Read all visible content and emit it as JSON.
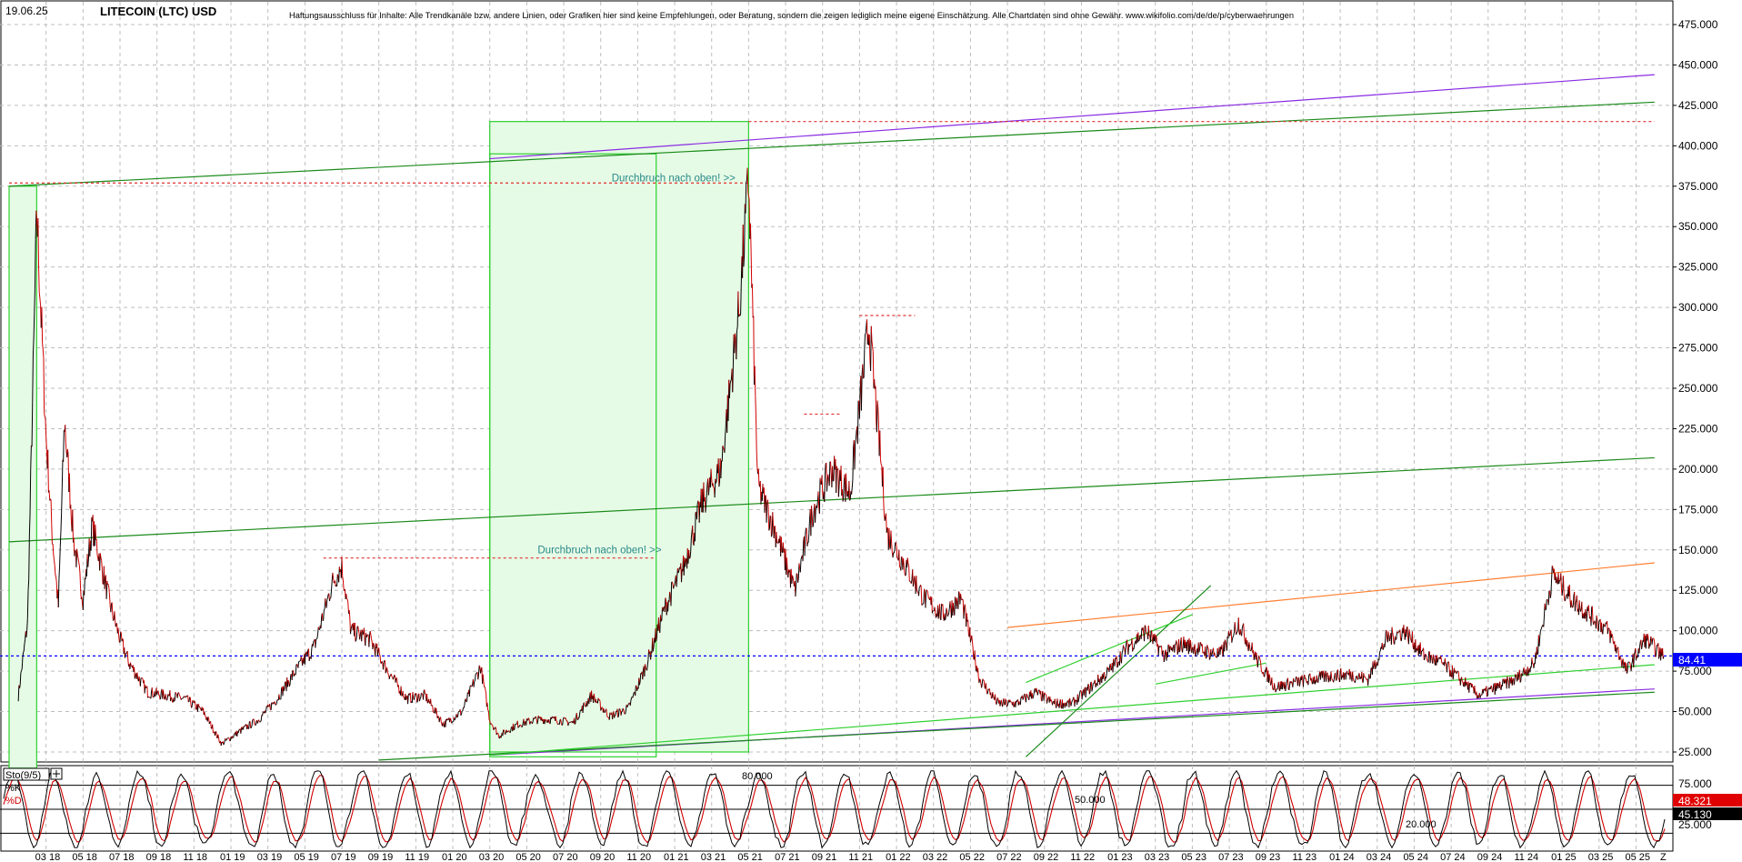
{
  "header": {
    "date": "19.06.25",
    "title": "LITECOIN (LTC) USD",
    "disclaimer": "Haftungsausschluss für Inhalte: Alle Trendkanäle bzw. andere Linien, oder Grafiken hier sind keine Empfehlungen, oder Beratung, sondern die zeigen lediglich meine eigene Einschätzung. Alle Chartdaten sind ohne Gewähr.  www.wikifolio.com/de/de/p/cyberwaehrungen"
  },
  "colors": {
    "price_up": "#000000",
    "price_down": "#d00000",
    "trend_green": "#1a8a1a",
    "trend_light": "#2fd02f",
    "trend_purple": "#8a2be2",
    "trend_orange": "#ff7f32",
    "resistance_red": "#e03030",
    "current_blue": "#0000ff",
    "highlight_fill": "#e6fbe6",
    "annotation": "#2a8a8a"
  },
  "chart_data": [
    {
      "type": "line",
      "name_ref": "header.title",
      "y_axis": {
        "ticks": [
          "25.000",
          "50.000",
          "75.000",
          "100.000",
          "125.000",
          "150.000",
          "175.000",
          "200.000",
          "225.000",
          "250.000",
          "275.000",
          "300.000",
          "325.000",
          "350.000",
          "375.000",
          "400.000",
          "425.000",
          "450.000",
          "475.000"
        ],
        "ylim": [
          15,
          490
        ],
        "position": "right"
      },
      "x_axis": {
        "ticks": [
          "03 18",
          "05 18",
          "07 18",
          "09 18",
          "11 18",
          "01 19",
          "03 19",
          "05 19",
          "07 19",
          "09 19",
          "11 19",
          "01 20",
          "03 20",
          "05 20",
          "07 20",
          "09 20",
          "11 20",
          "01 21",
          "03 21",
          "05 21",
          "07 21",
          "09 21",
          "11 21",
          "01 22",
          "03 22",
          "05 22",
          "07 22",
          "09 22",
          "11 22",
          "01 23",
          "03 23",
          "05 23",
          "07 23",
          "09 23",
          "11 23",
          "01 24",
          "03 24",
          "05 24",
          "07 24",
          "09 24",
          "11 24",
          "01 25",
          "03 25",
          "05 25"
        ],
        "last_marker": "Z"
      },
      "grid": true,
      "price_path": [
        [
          "01 18",
          60
        ],
        [
          "02 18",
          105
        ],
        [
          "02 18",
          360
        ],
        [
          "03 18",
          220
        ],
        [
          "03 18",
          160
        ],
        [
          "03 18",
          115
        ],
        [
          "04 18",
          230
        ],
        [
          "04 18",
          155
        ],
        [
          "05 18",
          120
        ],
        [
          "05 18",
          165
        ],
        [
          "06 18",
          115
        ],
        [
          "07 18",
          95
        ],
        [
          "07 18",
          80
        ],
        [
          "08 18",
          62
        ],
        [
          "09 18",
          60
        ],
        [
          "10 18",
          58
        ],
        [
          "11 18",
          50
        ],
        [
          "12 18",
          30
        ],
        [
          "01 19",
          38
        ],
        [
          "02 19",
          45
        ],
        [
          "03 19",
          58
        ],
        [
          "04 19",
          75
        ],
        [
          "05 19",
          90
        ],
        [
          "06 19",
          130
        ],
        [
          "07 19",
          140
        ],
        [
          "07 19",
          100
        ],
        [
          "08 19",
          95
        ],
        [
          "09 19",
          75
        ],
        [
          "10 19",
          58
        ],
        [
          "11 19",
          60
        ],
        [
          "12 19",
          42
        ],
        [
          "01 20",
          50
        ],
        [
          "02 20",
          78
        ],
        [
          "03 20",
          45
        ],
        [
          "03 20",
          35
        ],
        [
          "04 20",
          42
        ],
        [
          "05 20",
          45
        ],
        [
          "06 20",
          45
        ],
        [
          "07 20",
          43
        ],
        [
          "08 20",
          60
        ],
        [
          "09 20",
          47
        ],
        [
          "10 20",
          52
        ],
        [
          "11 20",
          80
        ],
        [
          "12 20",
          115
        ],
        [
          "01 21",
          140
        ],
        [
          "02 21",
          180
        ],
        [
          "03 21",
          200
        ],
        [
          "04 21",
          300
        ],
        [
          "05 21",
          380
        ],
        [
          "05 21",
          190
        ],
        [
          "06 21",
          160
        ],
        [
          "07 21",
          125
        ],
        [
          "08 21",
          175
        ],
        [
          "09 21",
          200
        ],
        [
          "10 21",
          185
        ],
        [
          "11 21",
          290
        ],
        [
          "12 21",
          160
        ],
        [
          "01 22",
          140
        ],
        [
          "02 22",
          120
        ],
        [
          "03 22",
          110
        ],
        [
          "04 22",
          120
        ],
        [
          "05 22",
          70
        ],
        [
          "06 22",
          55
        ],
        [
          "07 22",
          55
        ],
        [
          "08 22",
          62
        ],
        [
          "09 22",
          55
        ],
        [
          "10 22",
          55
        ],
        [
          "11 22",
          65
        ],
        [
          "12 22",
          75
        ],
        [
          "01 23",
          90
        ],
        [
          "02 23",
          100
        ],
        [
          "03 23",
          85
        ],
        [
          "04 23",
          92
        ],
        [
          "05 23",
          88
        ],
        [
          "06 23",
          85
        ],
        [
          "07 23",
          105
        ],
        [
          "08 23",
          82
        ],
        [
          "09 23",
          65
        ],
        [
          "10 23",
          68
        ],
        [
          "11 23",
          70
        ],
        [
          "12 23",
          72
        ],
        [
          "01 24",
          73
        ],
        [
          "02 24",
          70
        ],
        [
          "03 24",
          95
        ],
        [
          "04 24",
          100
        ],
        [
          "05 24",
          85
        ],
        [
          "06 24",
          80
        ],
        [
          "07 24",
          70
        ],
        [
          "08 24",
          60
        ],
        [
          "09 24",
          65
        ],
        [
          "10 24",
          70
        ],
        [
          "11 24",
          80
        ],
        [
          "12 24",
          135
        ],
        [
          "01 25",
          120
        ],
        [
          "02 25",
          110
        ],
        [
          "03 25",
          100
        ],
        [
          "04 25",
          75
        ],
        [
          "05 25",
          95
        ],
        [
          "06 25",
          84
        ]
      ],
      "current_price": {
        "value": 84.41,
        "label": "84.41"
      },
      "annotations": [
        {
          "text": "Durchbruch nach oben! >>",
          "at": [
            "11 20",
            148
          ]
        },
        {
          "text": "Durchbruch nach oben! >>",
          "at": [
            "03 21",
            378
          ]
        }
      ],
      "lines": [
        {
          "color": "trend_green",
          "from": [
            "01 18",
            375
          ],
          "to": [
            "06 25",
            427
          ]
        },
        {
          "color": "trend_purple",
          "from": [
            "03 20",
            392
          ],
          "to": [
            "06 25",
            444
          ]
        },
        {
          "color": "trend_green",
          "from": [
            "01 18",
            155
          ],
          "to": [
            "06 25",
            207
          ]
        },
        {
          "color": "trend_purple",
          "from": [
            "03 20",
            23
          ],
          "to": [
            "06 25",
            64
          ]
        },
        {
          "color": "trend_green",
          "from": [
            "09 19",
            20
          ],
          "to": [
            "06 25",
            62
          ]
        },
        {
          "color": "trend_light",
          "from": [
            "03 20",
            23
          ],
          "to": [
            "06 25",
            79
          ]
        },
        {
          "color": "trend_orange",
          "from": [
            "07 22",
            102
          ],
          "to": [
            "06 25",
            142
          ]
        },
        {
          "color": "trend_green",
          "from": [
            "08 22",
            22
          ],
          "to": [
            "06 23",
            128
          ]
        },
        {
          "color": "trend_light",
          "from": [
            "08 22",
            68
          ],
          "to": [
            "05 23",
            110
          ]
        },
        {
          "color": "trend_light",
          "from": [
            "03 23",
            67
          ],
          "to": [
            "09 23",
            80
          ]
        },
        {
          "color": "resistance_red",
          "from": [
            "01 18",
            377
          ],
          "to": [
            "05 21",
            377
          ],
          "dash": true
        },
        {
          "color": "resistance_red",
          "from": [
            "06 19",
            145
          ],
          "to": [
            "12 20",
            145
          ],
          "dash": true
        },
        {
          "color": "resistance_red",
          "from": [
            "05 21",
            415
          ],
          "to": [
            "06 25",
            415
          ],
          "dash": true
        },
        {
          "color": "resistance_red",
          "from": [
            "08 21",
            234
          ],
          "to": [
            "10 21",
            234
          ],
          "dash": true
        },
        {
          "color": "resistance_red",
          "from": [
            "11 21",
            295
          ],
          "to": [
            "02 22",
            295
          ],
          "dash": true
        }
      ],
      "boxes": [
        {
          "from": [
            "03 20",
            415
          ],
          "to": [
            "05 21",
            25
          ]
        },
        {
          "from": [
            "03 20",
            395
          ],
          "to": [
            "12 20",
            22
          ]
        },
        {
          "from": [
            "01 18",
            375
          ],
          "to": [
            "02 18",
            15
          ]
        }
      ]
    },
    {
      "type": "line",
      "title": "Sto(9/5)",
      "legend": [
        "%K",
        "%D"
      ],
      "levels": [
        "80.000",
        "50.000",
        "20.000"
      ],
      "y_ticks": [
        "25.000",
        "75.000"
      ],
      "readouts": {
        "k": "48.321",
        "d": "45.130"
      },
      "ylim": [
        0,
        100
      ]
    }
  ]
}
